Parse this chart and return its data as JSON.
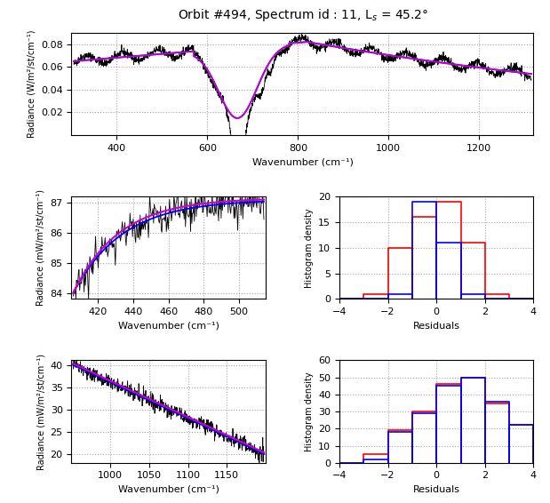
{
  "title": "Orbit #494, Spectrum id : 11, L$_s$ = 45.2°",
  "subplot1": {
    "xlabel": "Wavenumber (cm⁻¹)",
    "ylabel": "Radiance (W/m²/st/cm⁻¹)",
    "xlim": [
      300,
      1320
    ],
    "ylim": [
      0.0,
      0.09
    ],
    "yticks": [
      0.02,
      0.04,
      0.06,
      0.08
    ],
    "xticks": [
      400,
      600,
      800,
      1000,
      1200
    ]
  },
  "subplot2": {
    "xlabel": "Wavenumber (cm⁻¹)",
    "ylabel": "Radiance (mW/m²/st/cm⁻¹)",
    "xlim": [
      405,
      515
    ],
    "ylim": [
      83.8,
      87.2
    ],
    "yticks": [
      84,
      85,
      86,
      87
    ],
    "xticks": [
      420,
      440,
      460,
      480,
      500
    ]
  },
  "subplot3": {
    "xlabel": "Residuals",
    "ylabel": "Histogram density",
    "xlim": [
      -4,
      4
    ],
    "ylim": [
      0,
      20
    ],
    "yticks": [
      0,
      5,
      10,
      15,
      20
    ],
    "xticks": [
      -4,
      -2,
      0,
      2,
      4
    ],
    "red_vals": [
      0,
      1,
      10,
      16,
      19,
      11,
      1,
      0
    ],
    "blue_vals": [
      0,
      0,
      1,
      19,
      11,
      1,
      0,
      0
    ]
  },
  "subplot4": {
    "xlabel": "Wavenumber (cm⁻¹)",
    "ylabel": "Radiance (mW/m²/st/cm⁻¹)",
    "xlim": [
      950,
      1200
    ],
    "ylim": [
      18,
      41
    ],
    "yticks": [
      20,
      25,
      30,
      35,
      40
    ],
    "xticks": [
      1000,
      1050,
      1100,
      1150
    ]
  },
  "subplot5": {
    "xlabel": "Residuals",
    "ylabel": "Histogram density",
    "xlim": [
      -4,
      4
    ],
    "ylim": [
      0,
      60
    ],
    "yticks": [
      0,
      10,
      20,
      30,
      40,
      50,
      60
    ],
    "xticks": [
      -4,
      -2,
      0,
      2,
      4
    ],
    "red_vals": [
      0,
      5,
      19,
      30,
      46,
      50,
      35,
      22
    ],
    "blue_vals": [
      0,
      2,
      18,
      29,
      45,
      50,
      36,
      22
    ]
  },
  "colors": {
    "black": "#000000",
    "blue": "#0000FF",
    "red": "#FF0000",
    "magenta": "#CC00CC"
  }
}
